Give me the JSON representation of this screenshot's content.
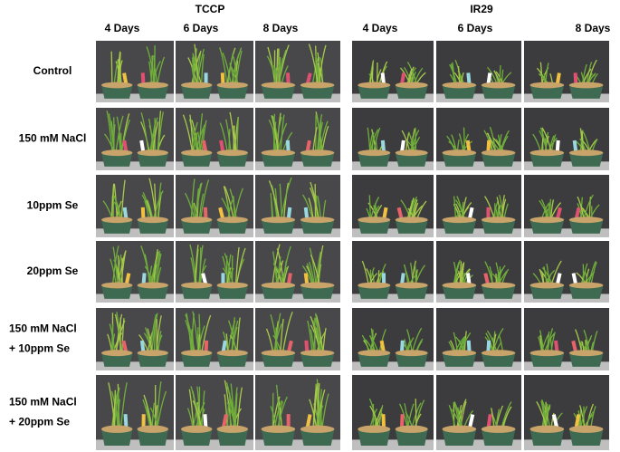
{
  "groups": [
    {
      "title": "TCCP",
      "columns": [
        "4 Days",
        "6 Days",
        "8 Days"
      ]
    },
    {
      "title": "IR29",
      "columns": [
        "4 Days",
        "6 Days",
        "8 Days"
      ]
    }
  ],
  "rows": [
    {
      "label": [
        "Control"
      ]
    },
    {
      "label": [
        "150 mM NaCl"
      ]
    },
    {
      "label": [
        "10ppm Se"
      ]
    },
    {
      "label": [
        "20ppm Se"
      ]
    },
    {
      "label": [
        "150 mM NaCl",
        "+ 10ppm Se"
      ]
    },
    {
      "label": [
        "150 mM NaCl",
        "+ 20ppm Se"
      ]
    }
  ]
}
